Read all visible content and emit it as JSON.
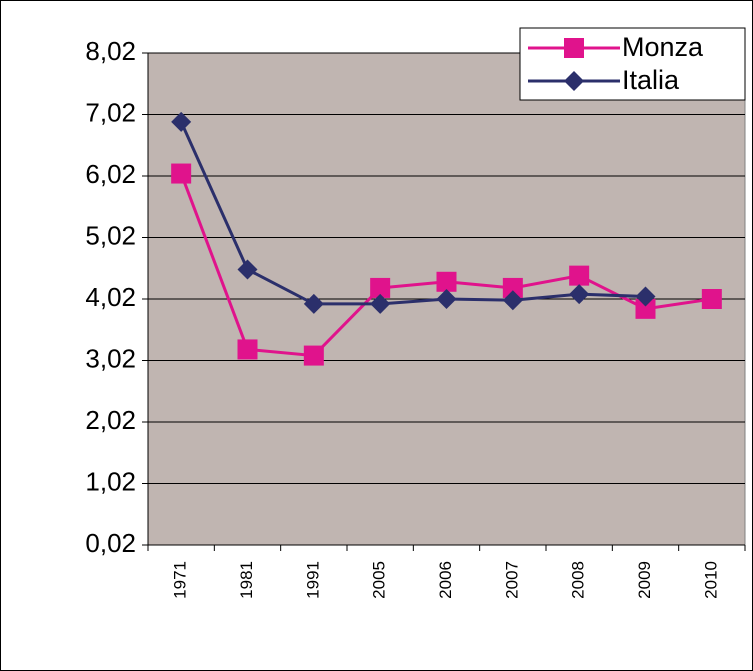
{
  "chart_data": {
    "type": "line",
    "categories": [
      "1971",
      "1981",
      "1991",
      "2005",
      "2006",
      "2007",
      "2008",
      "2009",
      "2010"
    ],
    "series": [
      {
        "name": "Monza",
        "color": "#e0138c",
        "marker": "square",
        "values": [
          6.06,
          3.2,
          3.1,
          4.2,
          4.3,
          4.2,
          4.4,
          3.86,
          4.02
        ]
      },
      {
        "name": "Italia",
        "color": "#2b2f6b",
        "marker": "diamond",
        "values": [
          6.9,
          4.5,
          3.94,
          3.94,
          4.02,
          4.0,
          4.1,
          4.06,
          null
        ]
      }
    ],
    "ylim": [
      0.02,
      8.02
    ],
    "yticks": [
      {
        "value": 0.02,
        "label": "0,02"
      },
      {
        "value": 1.02,
        "label": "1,02"
      },
      {
        "value": 2.02,
        "label": "2,02"
      },
      {
        "value": 3.02,
        "label": "3,02"
      },
      {
        "value": 4.02,
        "label": "4,02"
      },
      {
        "value": 5.02,
        "label": "5,02"
      },
      {
        "value": 6.02,
        "label": "6,02"
      },
      {
        "value": 7.02,
        "label": "7,02"
      },
      {
        "value": 8.02,
        "label": "8,02"
      }
    ],
    "grid": true,
    "legend": "top-right",
    "plot_background": "#c0b5b1"
  }
}
